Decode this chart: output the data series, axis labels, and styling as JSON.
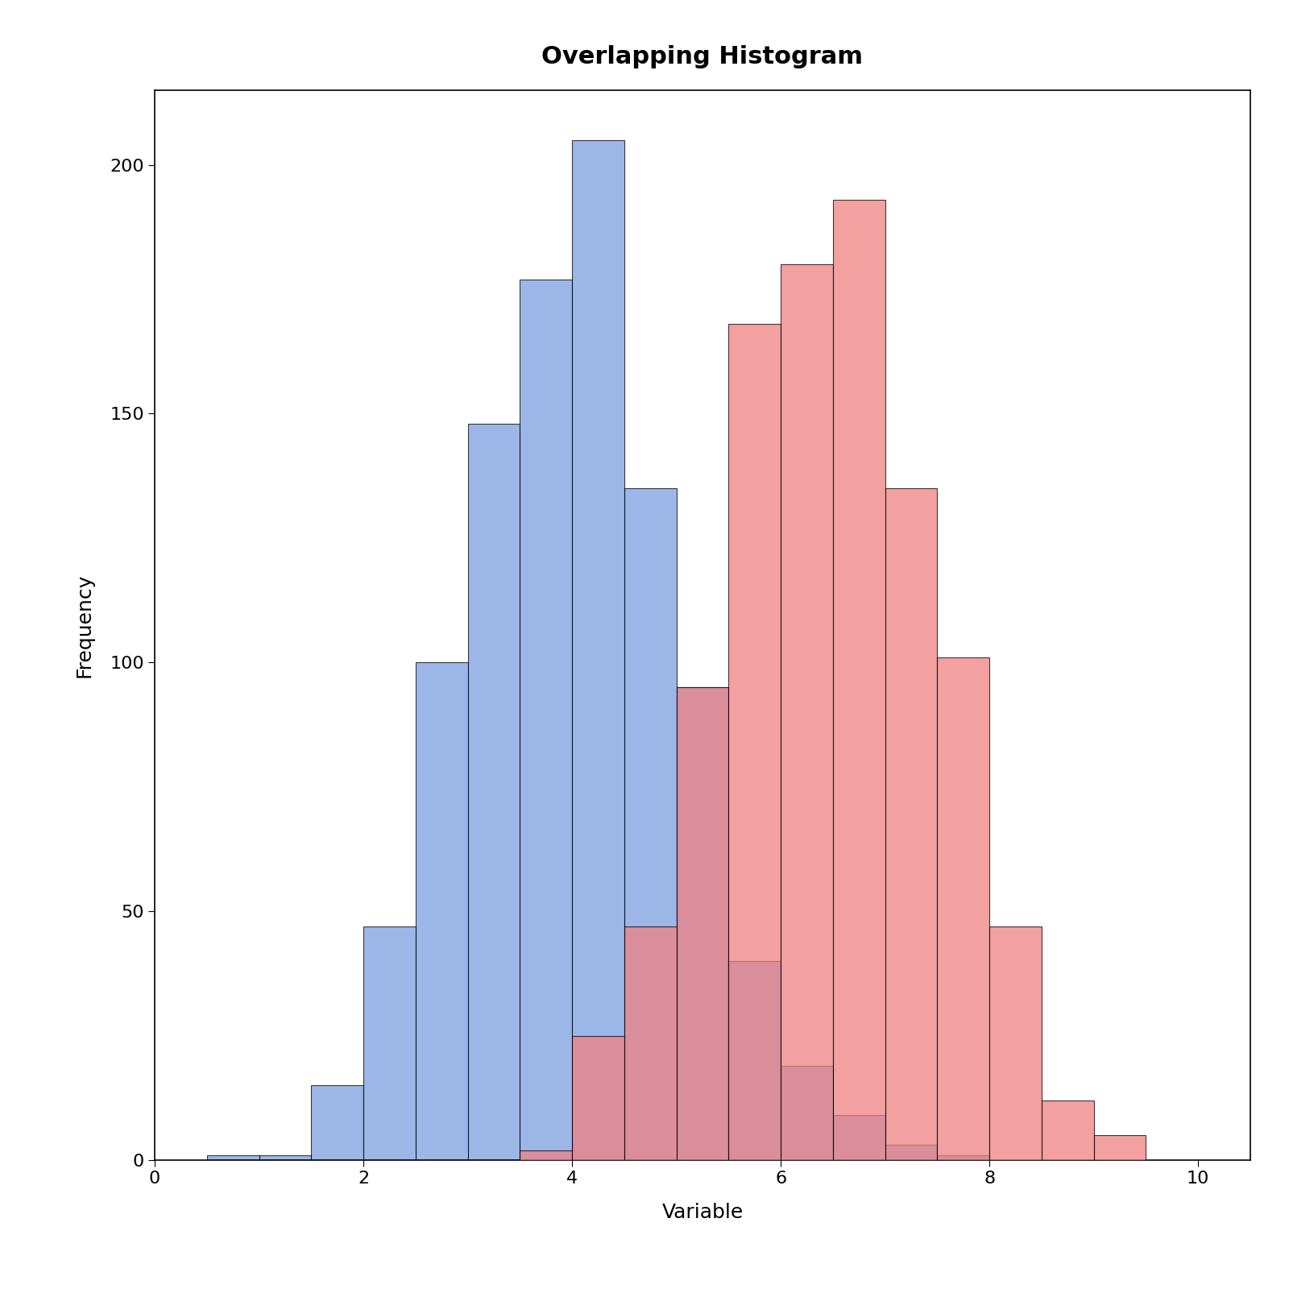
{
  "title": "Overlapping Histogram",
  "xlabel": "Variable",
  "ylabel": "Frequency",
  "xlim": [
    0.0,
    10.5
  ],
  "ylim": [
    0,
    215
  ],
  "xticks": [
    0,
    2,
    4,
    6,
    8,
    10
  ],
  "yticks": [
    0,
    50,
    100,
    150,
    200
  ],
  "blue_color": "#7B9FE0",
  "red_color": "#F08080",
  "blue_alpha": 0.75,
  "red_alpha": 0.75,
  "edge_color": "#000000",
  "background_color": "#FFFFFF",
  "title_fontsize": 22,
  "axis_label_fontsize": 18,
  "tick_fontsize": 16,
  "bin_edges": [
    0.5,
    1.0,
    1.5,
    2.0,
    2.5,
    3.0,
    3.5,
    4.0,
    4.5,
    5.0,
    5.5,
    6.0,
    6.5,
    7.0,
    7.5,
    8.0,
    8.5,
    9.0,
    9.5
  ],
  "blue_counts": [
    1,
    1,
    15,
    47,
    100,
    148,
    177,
    205,
    135,
    95,
    40,
    19,
    9,
    3,
    1,
    0,
    0,
    0
  ],
  "red_counts": [
    0,
    0,
    0,
    0,
    0,
    0,
    2,
    25,
    47,
    95,
    168,
    180,
    193,
    135,
    101,
    47,
    12,
    5
  ]
}
